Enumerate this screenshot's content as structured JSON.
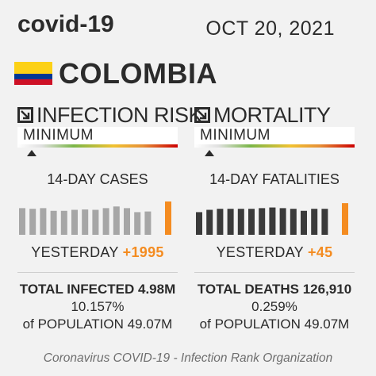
{
  "header": {
    "title": "covid-19",
    "date": "OCT 20, 2021"
  },
  "country": {
    "name": "COLOMBIA",
    "flag_colors": [
      "#fcd116",
      "#003893",
      "#ce1126"
    ]
  },
  "infection": {
    "title": "INFECTION RISK",
    "level": "MINIMUM",
    "cases_label": "14-DAY CASES",
    "yesterday_label": "YESTERDAY",
    "yesterday_value": "+1995",
    "total_line1_label": "TOTAL INFECTED",
    "total_line1_value": "4.98M",
    "pct": "10.157%",
    "pop_label": "of POPULATION",
    "pop_value": "49.07M"
  },
  "mortality": {
    "title": "MORTALITY",
    "level": "MINIMUM",
    "cases_label": "14-DAY FATALITIES",
    "yesterday_label": "YESTERDAY",
    "yesterday_value": "+45",
    "total_line1_label": "TOTAL DEATHS",
    "total_line1_value": "126,910",
    "pct": "0.259%",
    "pop_label": "of POPULATION",
    "pop_value": "49.07M"
  },
  "footer": "Coronavirus COVID-19 - Infection Rank Organization",
  "chart_data": [
    {
      "type": "bar",
      "name": "14-DAY CASES",
      "values": [
        0.8,
        0.78,
        0.8,
        0.72,
        0.72,
        0.75,
        0.76,
        0.75,
        0.8,
        0.85,
        0.8,
        0.68,
        0.7,
        1.0
      ],
      "colors": {
        "normal": "#a6a6a6",
        "latest": "#f48c21"
      }
    },
    {
      "type": "bar",
      "name": "14-DAY FATALITIES",
      "values": [
        0.68,
        0.75,
        0.78,
        0.78,
        0.78,
        0.78,
        0.8,
        0.82,
        0.8,
        0.78,
        0.72,
        0.78,
        0.78,
        0.95
      ],
      "colors": {
        "normal": "#3a3a3a",
        "latest": "#f48c21"
      }
    }
  ]
}
